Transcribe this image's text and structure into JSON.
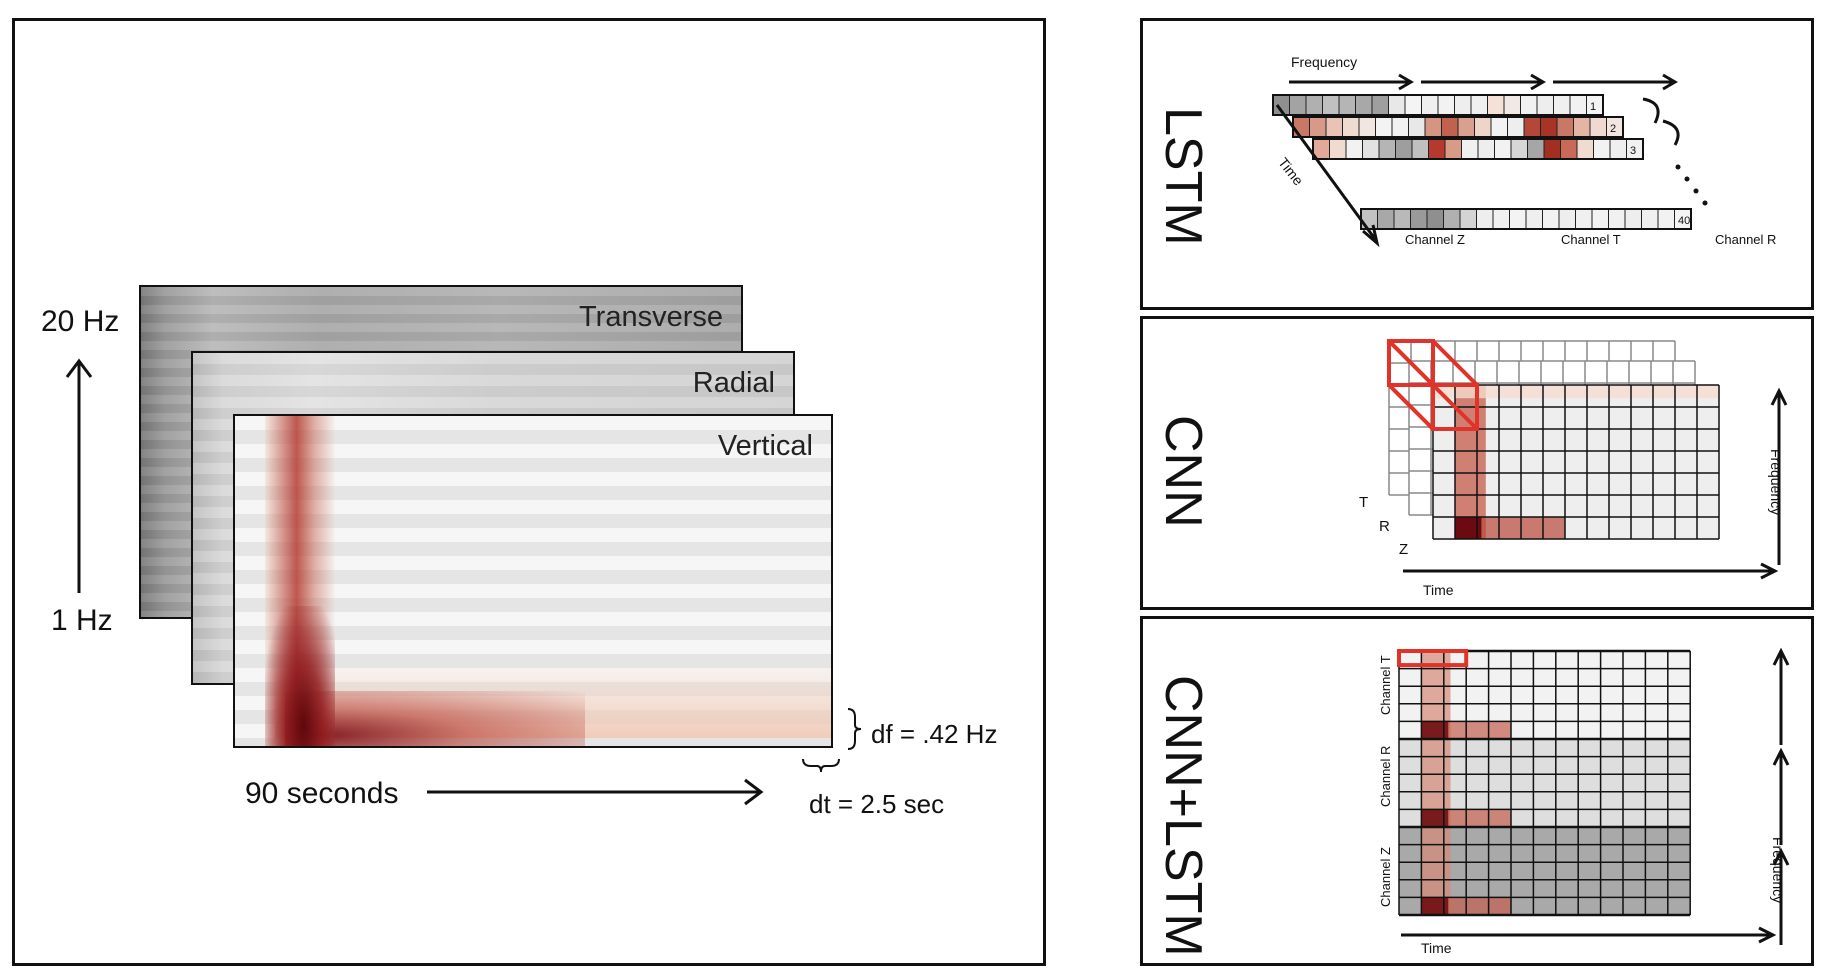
{
  "spectrogram_panel": {
    "components": [
      "Transverse",
      "Radial",
      "Vertical"
    ],
    "freq_top": "20 Hz",
    "freq_bottom": "1 Hz",
    "time_label": "90 seconds",
    "df_label": "df = .42 Hz",
    "dt_label": "dt = 2.5 sec"
  },
  "lstm_panel": {
    "title": "LSTM",
    "frequency_label": "Frequency",
    "time_label": "Time",
    "row_numbers": [
      "1",
      "2",
      "3",
      "40"
    ],
    "channels": [
      "Channel Z",
      "Channel T",
      "Channel R"
    ]
  },
  "cnn_panel": {
    "title": "CNN",
    "channel_letters": [
      "T",
      "R",
      "Z"
    ],
    "time_label": "Time",
    "frequency_label": "Frequency"
  },
  "cnn_lstm_panel": {
    "title": "CNN+LSTM",
    "channels": [
      "Channel T",
      "Channel R",
      "Channel Z"
    ],
    "time_label": "Time",
    "frequency_label": "Frequency"
  },
  "colors": {
    "accent_red": "#e0332a",
    "spectrogram_dark_red": "#6b0a10",
    "spectrogram_gray": "#8c8c8c"
  }
}
